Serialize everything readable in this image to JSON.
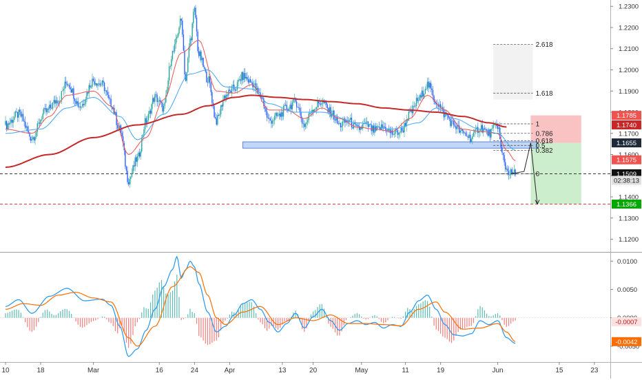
{
  "chart_data": {
    "type": "candlestick",
    "colors": {
      "up": "#26a69a",
      "down": "#2962ff",
      "ema_fast": "#ef5350",
      "ema_slow": "#42a5f5",
      "ma_long": "#c62828",
      "support_zone": "#90b4f0",
      "risk_zone": "#f8bcbc",
      "reward_zone": "#c8ecc8",
      "fib_ext_zone": "#f2f2f2",
      "macd": "#2196f3",
      "signal": "#ff6d00",
      "hist_pos": "#26a69a",
      "hist_neg": "#ef5350"
    },
    "x_axis": {
      "ticks": [
        {
          "label": "10",
          "day": 0
        },
        {
          "label": "18",
          "day": 8
        },
        {
          "label": "Mar",
          "day": 20
        },
        {
          "label": "16",
          "day": 35
        },
        {
          "label": "24",
          "day": 43
        },
        {
          "label": "Apr",
          "day": 51
        },
        {
          "label": "13",
          "day": 63
        },
        {
          "label": "20",
          "day": 70
        },
        {
          "label": "May",
          "day": 81
        },
        {
          "label": "11",
          "day": 91
        },
        {
          "label": "19",
          "day": 99
        },
        {
          "label": "Jun",
          "day": 112
        },
        {
          "label": "15",
          "day": 126
        },
        {
          "label": "23",
          "day": 134
        }
      ]
    },
    "price_axis": {
      "ticks": [
        "1.2300",
        "1.2200",
        "1.2100",
        "1.2000",
        "1.1900",
        "1.1800",
        "1.1700",
        "1.1600",
        "1.1500",
        "1.1400",
        "1.1300",
        "1.1200"
      ],
      "ylim": [
        1.114,
        1.233
      ]
    },
    "macd_axis": {
      "ticks": [
        "0.0100",
        "0.0050",
        "0.0000",
        "-0.0050"
      ],
      "ylim": [
        -0.0078,
        0.0115
      ]
    },
    "series": [
      {
        "name": "price",
        "anchors": [
          [
            0,
            1.174
          ],
          [
            3,
            1.179
          ],
          [
            6,
            1.168
          ],
          [
            9,
            1.18
          ],
          [
            12,
            1.186
          ],
          [
            14,
            1.194
          ],
          [
            17,
            1.183
          ],
          [
            20,
            1.195
          ],
          [
            22,
            1.193
          ],
          [
            24,
            1.184
          ],
          [
            26,
            1.172
          ],
          [
            28,
            1.148
          ],
          [
            30,
            1.158
          ],
          [
            32,
            1.176
          ],
          [
            34,
            1.187
          ],
          [
            36,
            1.182
          ],
          [
            38,
            1.208
          ],
          [
            40,
            1.223
          ],
          [
            41,
            1.195
          ],
          [
            42,
            1.214
          ],
          [
            43,
            1.228
          ],
          [
            44,
            1.207
          ],
          [
            46,
            1.196
          ],
          [
            48,
            1.176
          ],
          [
            50,
            1.188
          ],
          [
            52,
            1.191
          ],
          [
            54,
            1.197
          ],
          [
            56,
            1.194
          ],
          [
            58,
            1.188
          ],
          [
            60,
            1.176
          ],
          [
            62,
            1.178
          ],
          [
            64,
            1.182
          ],
          [
            66,
            1.185
          ],
          [
            68,
            1.174
          ],
          [
            70,
            1.182
          ],
          [
            72,
            1.185
          ],
          [
            74,
            1.18
          ],
          [
            76,
            1.174
          ],
          [
            78,
            1.176
          ],
          [
            80,
            1.172
          ],
          [
            82,
            1.174
          ],
          [
            84,
            1.171
          ],
          [
            86,
            1.173
          ],
          [
            88,
            1.17
          ],
          [
            90,
            1.171
          ],
          [
            92,
            1.179
          ],
          [
            94,
            1.186
          ],
          [
            96,
            1.193
          ],
          [
            98,
            1.185
          ],
          [
            100,
            1.179
          ],
          [
            102,
            1.174
          ],
          [
            104,
            1.17
          ],
          [
            106,
            1.168
          ],
          [
            108,
            1.173
          ],
          [
            110,
            1.17
          ],
          [
            112,
            1.174
          ],
          [
            113,
            1.16
          ],
          [
            114,
            1.153
          ],
          [
            115,
            1.151
          ],
          [
            116,
            1.151
          ]
        ]
      },
      {
        "name": "ema_fast",
        "anchors": [
          [
            0,
            1.172
          ],
          [
            6,
            1.17
          ],
          [
            10,
            1.178
          ],
          [
            14,
            1.188
          ],
          [
            20,
            1.19
          ],
          [
            24,
            1.183
          ],
          [
            28,
            1.16
          ],
          [
            32,
            1.168
          ],
          [
            36,
            1.186
          ],
          [
            40,
            1.208
          ],
          [
            44,
            1.214
          ],
          [
            48,
            1.19
          ],
          [
            52,
            1.189
          ],
          [
            56,
            1.193
          ],
          [
            60,
            1.181
          ],
          [
            64,
            1.181
          ],
          [
            68,
            1.177
          ],
          [
            72,
            1.182
          ],
          [
            76,
            1.177
          ],
          [
            80,
            1.173
          ],
          [
            84,
            1.172
          ],
          [
            88,
            1.171
          ],
          [
            92,
            1.177
          ],
          [
            96,
            1.188
          ],
          [
            100,
            1.181
          ],
          [
            104,
            1.172
          ],
          [
            108,
            1.171
          ],
          [
            112,
            1.17
          ],
          [
            114,
            1.162
          ],
          [
            116,
            1.157
          ]
        ]
      },
      {
        "name": "ema_slow",
        "anchors": [
          [
            0,
            1.17
          ],
          [
            8,
            1.172
          ],
          [
            14,
            1.182
          ],
          [
            20,
            1.187
          ],
          [
            26,
            1.178
          ],
          [
            30,
            1.167
          ],
          [
            36,
            1.179
          ],
          [
            42,
            1.198
          ],
          [
            46,
            1.2
          ],
          [
            50,
            1.192
          ],
          [
            56,
            1.191
          ],
          [
            60,
            1.184
          ],
          [
            66,
            1.18
          ],
          [
            72,
            1.18
          ],
          [
            80,
            1.175
          ],
          [
            88,
            1.172
          ],
          [
            94,
            1.175
          ],
          [
            98,
            1.182
          ],
          [
            102,
            1.177
          ],
          [
            108,
            1.172
          ],
          [
            112,
            1.17
          ],
          [
            116,
            1.162
          ]
        ]
      },
      {
        "name": "ma_long",
        "anchors": [
          [
            0,
            1.154
          ],
          [
            10,
            1.16
          ],
          [
            20,
            1.168
          ],
          [
            30,
            1.174
          ],
          [
            40,
            1.179
          ],
          [
            46,
            1.183
          ],
          [
            52,
            1.187
          ],
          [
            56,
            1.188
          ],
          [
            62,
            1.187
          ],
          [
            68,
            1.186
          ],
          [
            74,
            1.185
          ],
          [
            80,
            1.184
          ],
          [
            86,
            1.182
          ],
          [
            92,
            1.181
          ],
          [
            98,
            1.18
          ],
          [
            104,
            1.178
          ],
          [
            110,
            1.175
          ],
          [
            114,
            1.173
          ]
        ]
      }
    ],
    "support_zone": {
      "day_start": 54,
      "day_end": 121,
      "price_low": 1.163,
      "price_high": 1.166
    },
    "fib_levels": [
      {
        "label": "2.618",
        "price": 1.212
      },
      {
        "label": "1.618",
        "price": 1.189
      },
      {
        "label": "1",
        "price": 1.1745
      },
      {
        "label": "0.786",
        "price": 1.17
      },
      {
        "label": "0.618",
        "price": 1.1665
      },
      {
        "label": "0.5",
        "price": 1.1643
      },
      {
        "label": "0.382",
        "price": 1.162
      },
      {
        "label": "0",
        "price": 1.1509
      }
    ],
    "fib_range": {
      "day_start": 111,
      "day_end": 120
    },
    "fib_ext_zone": {
      "day_start": 111,
      "day_end": 120,
      "price_low": 1.186,
      "price_high": 1.212
    },
    "position": {
      "day_start": 119.5,
      "day_end": 131,
      "entry": 1.1655,
      "stop": 1.1785,
      "target": 1.1366
    },
    "projection": [
      [
        115,
        1.1509
      ],
      [
        118,
        1.152
      ],
      [
        119.5,
        1.1655
      ],
      [
        121,
        1.1366
      ]
    ],
    "h_lines": [
      {
        "name": "current-price-line",
        "price": 1.1509,
        "color": "#333333"
      },
      {
        "name": "target-line",
        "price": 1.1366,
        "color": "#e53935"
      }
    ],
    "price_labels": [
      {
        "text": "1.1785",
        "price": 1.1785,
        "bg": "#ef5350",
        "fg": "#ffffff"
      },
      {
        "text": "1.1740",
        "price": 1.174,
        "bg": "#c62828",
        "fg": "#ffffff"
      },
      {
        "text": "1.1655",
        "price": 1.1655,
        "bg": "#1e2a3a",
        "fg": "#ffffff"
      },
      {
        "text": "1.1575",
        "price": 1.1575,
        "bg": "#ef5350",
        "fg": "#ffffff"
      },
      {
        "text": "1.1509",
        "price": 1.1509,
        "bg": "#111111",
        "fg": "#ffffff"
      },
      {
        "text": "02:38:13",
        "price": 1.1478,
        "bg": "#e0e0e0",
        "fg": "#222222"
      },
      {
        "text": "1.1366",
        "price": 1.1366,
        "bg": "#00a800",
        "fg": "#ffffff"
      }
    ],
    "macd": {
      "macd_anchors": [
        [
          0,
          0.002
        ],
        [
          3,
          0.0032
        ],
        [
          6,
          0.0008
        ],
        [
          10,
          0.0038
        ],
        [
          14,
          0.0052
        ],
        [
          18,
          0.003
        ],
        [
          22,
          0.0033
        ],
        [
          24,
          0.0022
        ],
        [
          26,
          -0.0015
        ],
        [
          28,
          -0.0068
        ],
        [
          30,
          -0.0055
        ],
        [
          32,
          -0.0022
        ],
        [
          34,
          0.0015
        ],
        [
          36,
          0.0055
        ],
        [
          38,
          0.0085
        ],
        [
          39,
          0.0108
        ],
        [
          40,
          0.007
        ],
        [
          41,
          0.0085
        ],
        [
          42,
          0.01
        ],
        [
          43,
          0.009
        ],
        [
          44,
          0.006
        ],
        [
          46,
          0.001
        ],
        [
          48,
          -0.0025
        ],
        [
          50,
          -0.0015
        ],
        [
          52,
          0.0005
        ],
        [
          54,
          0.0025
        ],
        [
          56,
          0.0032
        ],
        [
          58,
          0.0015
        ],
        [
          60,
          -0.0008
        ],
        [
          62,
          -0.0025
        ],
        [
          64,
          -0.001
        ],
        [
          66,
          0.0008
        ],
        [
          68,
          -0.0018
        ],
        [
          70,
          0.0002
        ],
        [
          72,
          0.0015
        ],
        [
          74,
          -0.0005
        ],
        [
          76,
          -0.0022
        ],
        [
          78,
          -0.001
        ],
        [
          80,
          -0.0005
        ],
        [
          82,
          -0.0012
        ],
        [
          84,
          -0.0008
        ],
        [
          86,
          -0.0018
        ],
        [
          88,
          -0.0012
        ],
        [
          90,
          -0.0015
        ],
        [
          92,
          0.001
        ],
        [
          94,
          0.003
        ],
        [
          96,
          0.004
        ],
        [
          98,
          0.0015
        ],
        [
          100,
          -0.0012
        ],
        [
          102,
          -0.003
        ],
        [
          104,
          -0.0032
        ],
        [
          106,
          -0.0028
        ],
        [
          108,
          -0.0005
        ],
        [
          110,
          -0.0012
        ],
        [
          112,
          -0.0005
        ],
        [
          114,
          -0.0035
        ],
        [
          116,
          -0.0045
        ]
      ],
      "signal_anchors": [
        [
          0,
          0.0015
        ],
        [
          4,
          0.0025
        ],
        [
          8,
          0.0022
        ],
        [
          12,
          0.004
        ],
        [
          16,
          0.0045
        ],
        [
          20,
          0.0035
        ],
        [
          24,
          0.0028
        ],
        [
          28,
          -0.0035
        ],
        [
          30,
          -0.005
        ],
        [
          34,
          -0.0015
        ],
        [
          38,
          0.0055
        ],
        [
          42,
          0.009
        ],
        [
          44,
          0.008
        ],
        [
          46,
          0.004
        ],
        [
          48,
          0.0
        ],
        [
          50,
          -0.0012
        ],
        [
          54,
          0.001
        ],
        [
          58,
          0.002
        ],
        [
          62,
          -0.0012
        ],
        [
          66,
          0.0
        ],
        [
          70,
          -0.0005
        ],
        [
          74,
          0.0005
        ],
        [
          78,
          -0.001
        ],
        [
          82,
          -0.001
        ],
        [
          86,
          -0.0012
        ],
        [
          90,
          -0.0014
        ],
        [
          94,
          0.0015
        ],
        [
          98,
          0.0028
        ],
        [
          100,
          0.001
        ],
        [
          104,
          -0.002
        ],
        [
          108,
          -0.0018
        ],
        [
          112,
          -0.001
        ],
        [
          114,
          -0.0025
        ],
        [
          116,
          -0.0042
        ]
      ],
      "labels": [
        {
          "text": "-0.0007",
          "value": -0.0007,
          "bg": "#fde0e0",
          "fg": "#b71c1c"
        },
        {
          "text": "-0.0042",
          "value": -0.0042,
          "bg": "#ff6d00",
          "fg": "#ffffff"
        }
      ]
    }
  }
}
